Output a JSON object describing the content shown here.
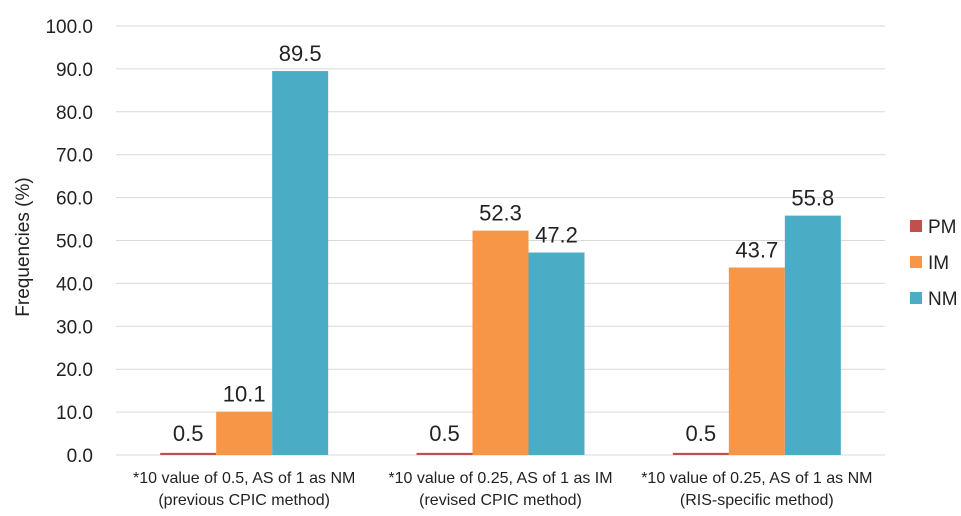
{
  "chart_data": {
    "type": "bar",
    "title": "",
    "ylabel": "Frequencies (%)",
    "xlabel": "",
    "ylim": [
      0,
      100
    ],
    "yticks": [
      "0.0",
      "10.0",
      "20.0",
      "30.0",
      "40.0",
      "50.0",
      "60.0",
      "70.0",
      "80.0",
      "90.0",
      "100.0"
    ],
    "grid": true,
    "legend_position": "right",
    "categories": [
      [
        "*10 value of 0.5, AS of 1 as NM",
        "(previous CPIC method)"
      ],
      [
        "*10 value of 0.25,  AS of 1 as IM",
        "(revised CPIC method)"
      ],
      [
        "*10 value of 0.25,  AS of 1 as NM",
        "(RIS-specific method)"
      ]
    ],
    "series": [
      {
        "name": "PM",
        "color": "#c0504d",
        "values": [
          0.5,
          0.5,
          0.5
        ],
        "labels": [
          "0.5",
          "0.5",
          "0.5"
        ]
      },
      {
        "name": "IM",
        "color": "#f79646",
        "values": [
          10.1,
          52.3,
          43.7
        ],
        "labels": [
          "10.1",
          "52.3",
          "43.7"
        ]
      },
      {
        "name": "NM",
        "color": "#4bacc6",
        "values": [
          89.5,
          47.2,
          55.8
        ],
        "labels": [
          "89.5",
          "47.2",
          "55.8"
        ]
      }
    ]
  }
}
